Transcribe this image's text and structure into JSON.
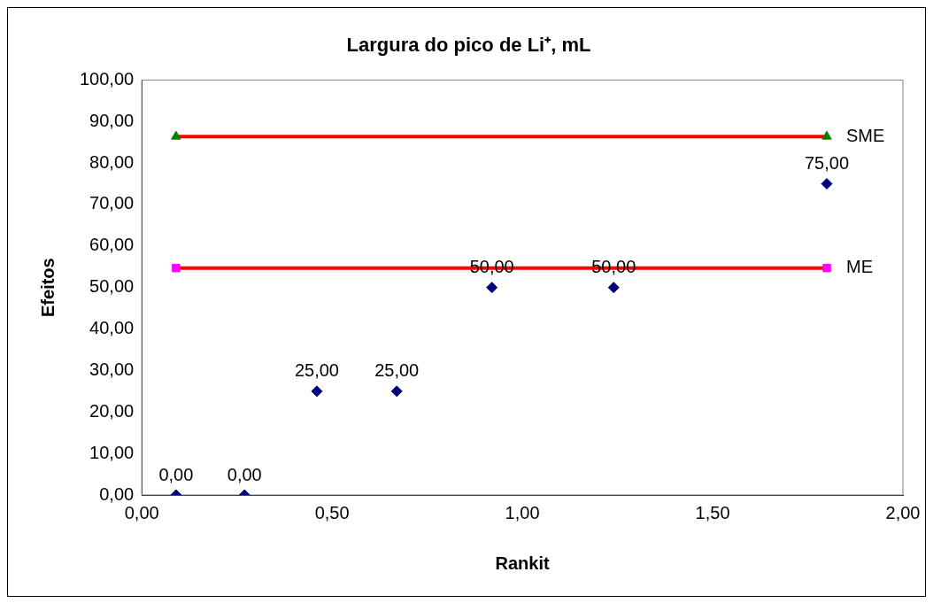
{
  "chart_data": {
    "type": "scatter",
    "title": "Largura do pico de Li⁺, mL",
    "xlabel": "Rankit",
    "ylabel": "Efeitos",
    "xlim": [
      0,
      2
    ],
    "xticks": [
      {
        "value": 0,
        "label": "0,00"
      },
      {
        "value": 0.5,
        "label": "0,50"
      },
      {
        "value": 1,
        "label": "1,00"
      },
      {
        "value": 1.5,
        "label": "1,50"
      },
      {
        "value": 2,
        "label": "2,00"
      }
    ],
    "ylim": [
      0,
      100
    ],
    "yticks": [
      {
        "value": 0,
        "label": "0,00"
      },
      {
        "value": 10,
        "label": "10,00"
      },
      {
        "value": 20,
        "label": "20,00"
      },
      {
        "value": 30,
        "label": "30,00"
      },
      {
        "value": 40,
        "label": "40,00"
      },
      {
        "value": 50,
        "label": "50,00"
      },
      {
        "value": 60,
        "label": "60,00"
      },
      {
        "value": 70,
        "label": "70,00"
      },
      {
        "value": 80,
        "label": "80,00"
      },
      {
        "value": 90,
        "label": "90,00"
      },
      {
        "value": 100,
        "label": "100,00"
      }
    ],
    "grid": false,
    "legend": false,
    "series": [
      {
        "type": "line",
        "name": "SME",
        "color": "#ff0000",
        "marker": "none",
        "x": [
          0.09,
          1.8
        ],
        "values": [
          86.4,
          86.4
        ]
      },
      {
        "color": "#008000",
        "marker": "triangle",
        "x": [
          0.09,
          1.8
        ],
        "values": [
          86.4,
          86.4
        ]
      },
      {
        "type": "line",
        "name": "ME",
        "color": "#ff0000",
        "marker": "none",
        "x": [
          0.09,
          1.8
        ],
        "values": [
          54.7,
          54.7
        ]
      },
      {
        "color": "#ff00ff",
        "marker": "square",
        "x": [
          0.09,
          1.8
        ],
        "values": [
          54.7,
          54.7
        ]
      },
      {
        "color": "#000080",
        "marker": "diamond",
        "x": [
          0.09,
          0.27,
          0.46,
          0.67,
          0.92,
          1.24,
          1.8
        ],
        "values": [
          0,
          0,
          25,
          25,
          50,
          50,
          75
        ],
        "value_labels": [
          "0,00",
          "0,00",
          "25,00",
          "25,00",
          "50,00",
          "50,00",
          "75,00"
        ]
      }
    ]
  }
}
